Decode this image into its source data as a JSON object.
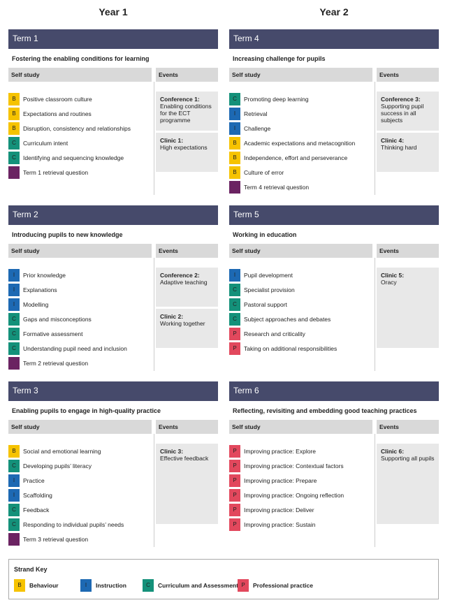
{
  "years": [
    {
      "label": "Year 1",
      "terms": [
        {
          "title": "Term 1",
          "subtitle": "Fostering the enabling conditions for learning",
          "self_study_label": "Self study",
          "events_label": "Events",
          "items": [
            {
              "strand": "B",
              "text": "Positive classroom culture"
            },
            {
              "strand": "B",
              "text": "Expectations and routines"
            },
            {
              "strand": "B",
              "text": "Disruption, consistency and relationships"
            },
            {
              "strand": "C",
              "text": "Curriculum intent"
            },
            {
              "strand": "C",
              "text": "Identifying and sequencing knowledge"
            },
            {
              "text": "Term 1 retrieval question"
            }
          ],
          "events": [
            {
              "title": "Conference 1:",
              "text": "Enabling conditions for the ECT programme"
            },
            {
              "title": "Clinic 1:",
              "text": "High expectations"
            }
          ]
        },
        {
          "title": "Term 2",
          "subtitle": "Introducing pupils to new knowledge",
          "self_study_label": "Self study",
          "events_label": "Events",
          "items": [
            {
              "strand": "I",
              "text": "Prior knowledge"
            },
            {
              "strand": "I",
              "text": "Explanations"
            },
            {
              "strand": "I",
              "text": "Modelling"
            },
            {
              "strand": "C",
              "text": "Gaps and misconceptions"
            },
            {
              "strand": "C",
              "text": "Formative assessment"
            },
            {
              "strand": "C",
              "text": "Understanding pupil need and inclusion"
            },
            {
              "text": "Term 2 retrieval question"
            }
          ],
          "events": [
            {
              "title": "Conference 2:",
              "text": "Adaptive teaching"
            },
            {
              "title": "Clinic 2:",
              "text": "Working together"
            }
          ]
        },
        {
          "title": "Term 3",
          "subtitle": "Enabling pupils to engage in high-quality practice",
          "self_study_label": "Self study",
          "events_label": "Events",
          "items": [
            {
              "strand": "B",
              "text": "Social and emotional learning"
            },
            {
              "strand": "C",
              "text": "Developing pupils’ literacy"
            },
            {
              "strand": "I",
              "text": "Practice"
            },
            {
              "strand": "I",
              "text": "Scaffolding"
            },
            {
              "strand": "C",
              "text": "Feedback"
            },
            {
              "strand": "C",
              "text": "Responding to individual pupils’ needs"
            },
            {
              "text": "Term 3 retrieval question"
            }
          ],
          "events": [
            {
              "title": "Clinic 3:",
              "text": "Effective feedback"
            }
          ]
        }
      ]
    },
    {
      "label": "Year 2",
      "terms": [
        {
          "title": "Term 4",
          "subtitle": "Increasing challenge for pupils",
          "self_study_label": "Self study",
          "events_label": "Events",
          "items": [
            {
              "strand": "C",
              "text": "Promoting deep learning"
            },
            {
              "strand": "I",
              "text": "Retrieval"
            },
            {
              "strand": "I",
              "text": "Challenge"
            },
            {
              "strand": "B",
              "text": "Academic expectations and metacognition"
            },
            {
              "strand": "B",
              "text": "Independence, effort and perseverance"
            },
            {
              "strand": "B",
              "text": "Culture of error"
            },
            {
              "text": "Term 4 retrieval question"
            }
          ],
          "events": [
            {
              "title": "Conference 3:",
              "text": "Supporting pupil success in all subjects"
            },
            {
              "title": "Clinic 4:",
              "text": "Thinking hard"
            }
          ]
        },
        {
          "title": "Term 5",
          "subtitle": "Working in education",
          "self_study_label": "Self study",
          "events_label": "Events",
          "items": [
            {
              "strand": "I",
              "text": "Pupil development"
            },
            {
              "strand": "C",
              "text": "Specialist provision"
            },
            {
              "strand": "C",
              "text": "Pastoral support"
            },
            {
              "strand": "C",
              "text": "Subject approaches and debates"
            },
            {
              "strand": "P",
              "text": "Research and criticality"
            },
            {
              "strand": "P",
              "text": "Taking on additional responsibilities"
            }
          ],
          "events": [
            {
              "title": "Clinic 5:",
              "text": "Oracy"
            }
          ]
        },
        {
          "title": "Term 6",
          "subtitle": "Reflecting, revisiting and embedding good teaching practices",
          "self_study_label": "Self study",
          "events_label": "Events",
          "items": [
            {
              "strand": "P",
              "text": "Improving practice: Explore"
            },
            {
              "strand": "P",
              "text": "Improving practice: Contextual factors"
            },
            {
              "strand": "P",
              "text": "Improving practice: Prepare"
            },
            {
              "strand": "P",
              "text": "Improving practice: Ongoing reflection"
            },
            {
              "strand": "P",
              "text": "Improving practice: Deliver"
            },
            {
              "strand": "P",
              "text": "Improving practice: Sustain"
            }
          ],
          "events": [
            {
              "title": "Clinic 6:",
              "text": "Supporting all pupils"
            }
          ]
        }
      ]
    }
  ],
  "key": {
    "title": "Strand Key",
    "retrieval_color": "#6b2362",
    "items": [
      {
        "code": "B",
        "label": "Behaviour",
        "color": "#f6c300"
      },
      {
        "code": "I",
        "label": "Instruction",
        "color": "#1d69b3"
      },
      {
        "code": "C",
        "label": "Curriculum and Assessment",
        "color": "#14917a"
      },
      {
        "code": "P",
        "label": "Professional practice",
        "color": "#e2485d"
      }
    ]
  }
}
